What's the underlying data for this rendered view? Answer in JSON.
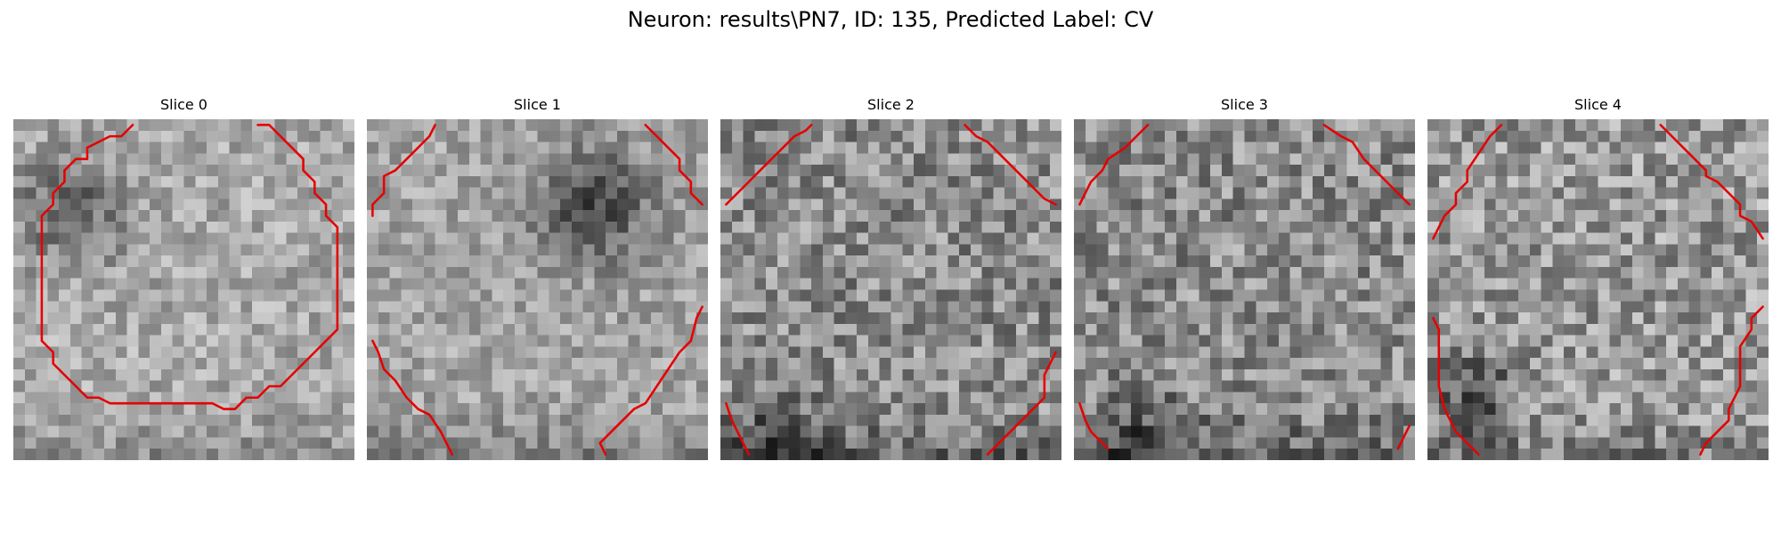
{
  "figure": {
    "title": "Neuron: results\\PN7, ID: 135, Predicted Label: CV"
  },
  "colors": {
    "contour": "#e60000",
    "background": "#ffffff"
  },
  "image_colormap": "gray",
  "grid_size": 30,
  "slices": [
    {
      "label": "Slice 0",
      "contours": [
        [
          [
            21.5,
            0.5
          ],
          [
            22.5,
            0.5
          ],
          [
            23.5,
            1.5
          ],
          [
            24.5,
            2.5
          ],
          [
            25.5,
            3.5
          ],
          [
            25.5,
            4.5
          ],
          [
            26.5,
            5.5
          ],
          [
            26.5,
            6.5
          ],
          [
            27.5,
            7.5
          ],
          [
            27.5,
            8.5
          ],
          [
            28.5,
            9.5
          ],
          [
            28.5,
            18.5
          ],
          [
            27.5,
            19.5
          ],
          [
            26.5,
            20.5
          ],
          [
            25.5,
            21.5
          ],
          [
            24.5,
            22.5
          ],
          [
            23.5,
            23.5
          ],
          [
            22.5,
            23.5
          ],
          [
            21.5,
            24.5
          ],
          [
            20.5,
            24.5
          ],
          [
            19.5,
            25.5
          ],
          [
            18.5,
            25.5
          ],
          [
            17.5,
            25.0
          ],
          [
            8.5,
            25.0
          ],
          [
            7.5,
            24.5
          ],
          [
            6.5,
            24.5
          ],
          [
            5.5,
            23.5
          ],
          [
            4.5,
            22.5
          ],
          [
            3.5,
            21.5
          ],
          [
            3.5,
            20.5
          ],
          [
            2.5,
            19.5
          ],
          [
            2.5,
            8.5
          ],
          [
            3.5,
            7.5
          ],
          [
            3.5,
            6.5
          ],
          [
            4.5,
            5.5
          ],
          [
            4.5,
            4.5
          ],
          [
            5.5,
            3.5
          ],
          [
            6.5,
            3.5
          ],
          [
            6.5,
            2.5
          ],
          [
            7.5,
            2.0
          ],
          [
            8.5,
            1.5
          ],
          [
            9.5,
            1.5
          ],
          [
            10.5,
            0.5
          ]
        ]
      ]
    },
    {
      "label": "Slice 1",
      "contours": [
        [
          [
            0.5,
            8.5
          ],
          [
            0.5,
            7.5
          ],
          [
            1.5,
            6.5
          ],
          [
            1.5,
            5.0
          ],
          [
            2.5,
            4.5
          ],
          [
            3.5,
            3.5
          ],
          [
            4.5,
            2.5
          ],
          [
            5.5,
            1.5
          ],
          [
            6.0,
            0.5
          ]
        ],
        [
          [
            24.5,
            0.5
          ],
          [
            25.5,
            1.5
          ],
          [
            26.5,
            2.5
          ],
          [
            27.5,
            3.5
          ],
          [
            27.5,
            4.5
          ],
          [
            28.5,
            5.5
          ],
          [
            28.5,
            6.5
          ],
          [
            29.5,
            7.5
          ]
        ],
        [
          [
            0.5,
            19.5
          ],
          [
            1.0,
            20.5
          ],
          [
            1.5,
            22.0
          ],
          [
            2.5,
            23.0
          ],
          [
            3.5,
            24.5
          ],
          [
            4.5,
            25.5
          ],
          [
            5.5,
            26.0
          ],
          [
            6.5,
            27.5
          ],
          [
            7.5,
            29.5
          ]
        ],
        [
          [
            29.5,
            16.5
          ],
          [
            29.0,
            17.5
          ],
          [
            28.5,
            19.5
          ],
          [
            27.5,
            20.5
          ],
          [
            26.5,
            22.0
          ],
          [
            25.5,
            23.5
          ],
          [
            24.5,
            25.0
          ],
          [
            23.5,
            25.5
          ],
          [
            22.5,
            26.5
          ],
          [
            21.5,
            27.5
          ],
          [
            20.5,
            28.5
          ],
          [
            21.0,
            29.5
          ]
        ]
      ]
    },
    {
      "label": "Slice 2",
      "contours": [
        [
          [
            0.5,
            7.5
          ],
          [
            1.5,
            6.5
          ],
          [
            2.5,
            5.5
          ],
          [
            3.5,
            4.5
          ],
          [
            4.5,
            3.5
          ],
          [
            5.5,
            2.5
          ],
          [
            6.5,
            1.5
          ],
          [
            7.5,
            1.0
          ],
          [
            8.0,
            0.5
          ]
        ],
        [
          [
            21.5,
            0.5
          ],
          [
            22.5,
            1.5
          ],
          [
            23.5,
            2.0
          ],
          [
            24.5,
            3.0
          ],
          [
            25.5,
            4.0
          ],
          [
            26.5,
            5.0
          ],
          [
            27.5,
            6.0
          ],
          [
            28.5,
            7.0
          ],
          [
            29.5,
            7.5
          ]
        ],
        [
          [
            0.5,
            25.0
          ],
          [
            1.0,
            26.5
          ],
          [
            1.5,
            27.5
          ],
          [
            2.0,
            28.5
          ],
          [
            2.5,
            29.5
          ]
        ],
        [
          [
            29.5,
            20.5
          ],
          [
            29.0,
            21.5
          ],
          [
            28.5,
            22.5
          ],
          [
            28.5,
            24.5
          ],
          [
            27.5,
            25.5
          ],
          [
            26.5,
            26.5
          ],
          [
            25.5,
            27.5
          ],
          [
            24.5,
            28.5
          ],
          [
            23.5,
            29.5
          ]
        ]
      ]
    },
    {
      "label": "Slice 3",
      "contours": [
        [
          [
            0.5,
            7.5
          ],
          [
            1.0,
            6.5
          ],
          [
            1.5,
            5.5
          ],
          [
            2.5,
            4.5
          ],
          [
            3.0,
            3.5
          ],
          [
            4.5,
            2.5
          ],
          [
            5.5,
            1.5
          ],
          [
            6.5,
            0.5
          ]
        ],
        [
          [
            22.0,
            0.5
          ],
          [
            23.5,
            1.5
          ],
          [
            24.5,
            2.0
          ],
          [
            25.5,
            3.5
          ],
          [
            26.5,
            4.5
          ],
          [
            27.5,
            5.5
          ],
          [
            28.5,
            6.5
          ],
          [
            29.5,
            7.5
          ]
        ],
        [
          [
            0.5,
            25.0
          ],
          [
            1.0,
            26.5
          ],
          [
            1.5,
            27.5
          ],
          [
            2.5,
            28.5
          ],
          [
            3.0,
            29.0
          ]
        ],
        [
          [
            29.5,
            27.0
          ],
          [
            29.0,
            28.0
          ],
          [
            28.5,
            29.0
          ]
        ]
      ]
    },
    {
      "label": "Slice 4",
      "contours": [
        [
          [
            0.5,
            10.5
          ],
          [
            1.0,
            9.5
          ],
          [
            1.5,
            8.5
          ],
          [
            2.5,
            7.5
          ],
          [
            2.5,
            6.5
          ],
          [
            3.5,
            5.5
          ],
          [
            3.5,
            4.5
          ],
          [
            4.5,
            3.0
          ],
          [
            5.5,
            1.5
          ],
          [
            6.5,
            0.5
          ]
        ],
        [
          [
            20.5,
            0.5
          ],
          [
            21.5,
            1.5
          ],
          [
            22.5,
            2.5
          ],
          [
            23.5,
            3.5
          ],
          [
            24.5,
            4.5
          ],
          [
            24.5,
            5.0
          ],
          [
            25.5,
            5.5
          ],
          [
            26.5,
            6.5
          ],
          [
            27.5,
            7.5
          ],
          [
            27.5,
            8.5
          ],
          [
            28.5,
            9.0
          ],
          [
            29.5,
            10.5
          ]
        ],
        [
          [
            0.5,
            17.5
          ],
          [
            1.0,
            18.5
          ],
          [
            1.0,
            23.5
          ],
          [
            1.5,
            25.5
          ],
          [
            2.0,
            26.5
          ],
          [
            2.5,
            27.5
          ],
          [
            3.5,
            28.5
          ],
          [
            4.5,
            29.5
          ]
        ],
        [
          [
            29.5,
            16.5
          ],
          [
            28.5,
            17.5
          ],
          [
            28.5,
            18.5
          ],
          [
            27.5,
            20.0
          ],
          [
            27.5,
            23.5
          ],
          [
            27.0,
            24.5
          ],
          [
            26.5,
            25.5
          ],
          [
            26.5,
            26.5
          ],
          [
            25.5,
            27.5
          ],
          [
            24.5,
            28.5
          ],
          [
            24.0,
            29.5
          ]
        ]
      ]
    }
  ]
}
